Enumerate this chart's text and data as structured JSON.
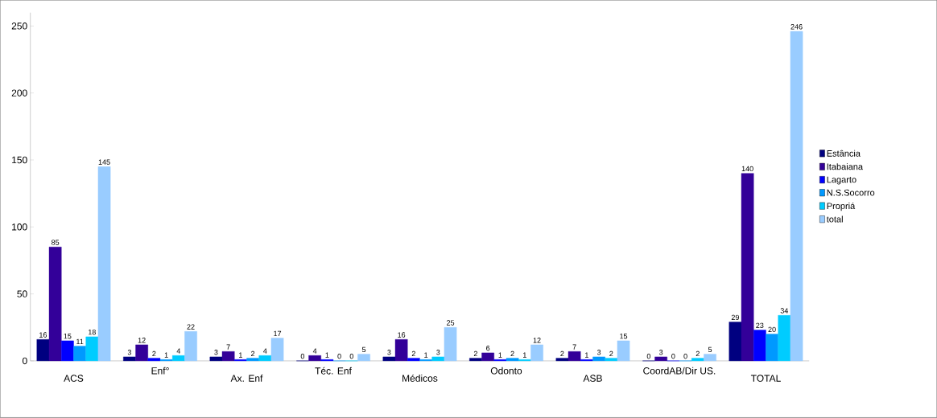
{
  "chart_data": {
    "type": "bar",
    "categories": [
      "ACS",
      "Enf°",
      "Ax. Enf",
      "Téc. Enf",
      "Médicos",
      "Odonto",
      "ASB",
      "CoordAB/Dir US.",
      "TOTAL"
    ],
    "series": [
      {
        "name": "Estância",
        "color": "#000080",
        "values": [
          16,
          3,
          3,
          0,
          3,
          2,
          2,
          0,
          29
        ]
      },
      {
        "name": "Itabaiana",
        "color": "#330099",
        "values": [
          85,
          12,
          7,
          4,
          16,
          6,
          7,
          3,
          140
        ]
      },
      {
        "name": "Lagarto",
        "color": "#0000ff",
        "values": [
          15,
          2,
          1,
          1,
          2,
          1,
          1,
          0,
          23
        ]
      },
      {
        "name": "N.S.Socorro",
        "color": "#0099ff",
        "values": [
          11,
          1,
          2,
          0,
          1,
          2,
          3,
          0,
          20
        ]
      },
      {
        "name": "Propriá",
        "color": "#00ccff",
        "values": [
          18,
          4,
          4,
          0,
          3,
          1,
          2,
          2,
          34
        ]
      },
      {
        "name": "total",
        "color": "#99ccff",
        "values": [
          145,
          22,
          17,
          5,
          25,
          12,
          15,
          5,
          246
        ]
      }
    ],
    "ylim": [
      0,
      260
    ],
    "yticks": [
      0,
      50,
      100,
      150,
      200,
      250
    ],
    "grid": false,
    "legend": "right",
    "data_labels": true
  }
}
